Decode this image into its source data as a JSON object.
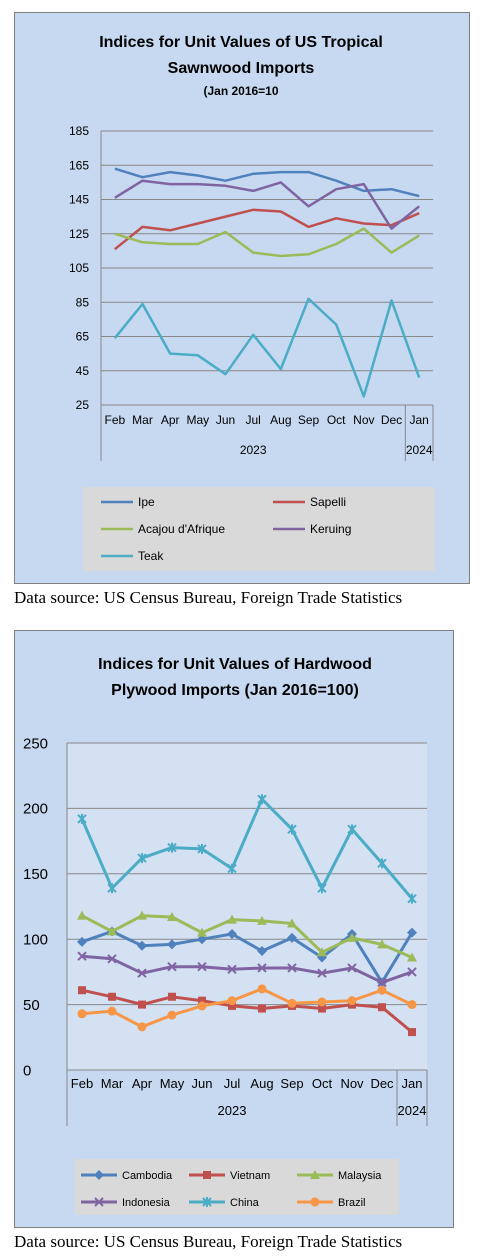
{
  "chart_data": [
    {
      "type": "line",
      "title": "Indices for Unit Values of US Tropical Sawnwood Imports",
      "subtitle": "(Jan 2016=10",
      "categories": [
        "Feb",
        "Mar",
        "Apr",
        "May",
        "Jun",
        "Jul",
        "Aug",
        "Sep",
        "Oct",
        "Nov",
        "Dec",
        "Jan"
      ],
      "year_groups": [
        {
          "label": "2023",
          "span": 11
        },
        {
          "label": "2024",
          "span": 1
        }
      ],
      "ylim": [
        25,
        185
      ],
      "yticks": [
        25,
        45,
        65,
        85,
        105,
        125,
        145,
        165,
        185
      ],
      "grid": true,
      "legend_position": "bottom",
      "series": [
        {
          "name": "Ipe",
          "color": "#4f81bd",
          "values": [
            163,
            158,
            161,
            159,
            156,
            160,
            161,
            161,
            156,
            150,
            151,
            147
          ]
        },
        {
          "name": "Sapelli",
          "color": "#c0504d",
          "values": [
            116,
            129,
            127,
            131,
            135,
            139,
            138,
            129,
            134,
            131,
            130,
            137
          ]
        },
        {
          "name": "Acajou d'Afrique",
          "color": "#9bbb59",
          "values": [
            125,
            120,
            119,
            119,
            126,
            114,
            112,
            113,
            119,
            128,
            114,
            124
          ]
        },
        {
          "name": "Keruing",
          "color": "#8064a2",
          "values": [
            146,
            156,
            154,
            154,
            153,
            150,
            155,
            141,
            151,
            154,
            128,
            141
          ]
        },
        {
          "name": "Teak",
          "color": "#4bacc6",
          "values": [
            64,
            84,
            55,
            54,
            43,
            66,
            46,
            87,
            72,
            30,
            86,
            41
          ]
        }
      ]
    },
    {
      "type": "line",
      "title": "Indices for Unit Values of Hardwood Plywood Imports (Jan 2016=100)",
      "categories": [
        "Feb",
        "Mar",
        "Apr",
        "May",
        "Jun",
        "Jul",
        "Aug",
        "Sep",
        "Oct",
        "Nov",
        "Dec",
        "Jan"
      ],
      "year_groups": [
        {
          "label": "2023",
          "span": 11
        },
        {
          "label": "2024",
          "span": 1
        }
      ],
      "ylim": [
        0,
        250
      ],
      "yticks": [
        0,
        50,
        100,
        150,
        200,
        250
      ],
      "grid": true,
      "legend_position": "bottom",
      "series": [
        {
          "name": "Cambodia",
          "color": "#4f81bd",
          "marker": "diamond",
          "values": [
            98,
            106,
            95,
            96,
            100,
            104,
            91,
            101,
            86,
            104,
            67,
            105
          ]
        },
        {
          "name": "Vietnam",
          "color": "#c0504d",
          "marker": "square",
          "values": [
            61,
            56,
            50,
            56,
            53,
            49,
            47,
            49,
            47,
            50,
            48,
            29
          ]
        },
        {
          "name": "Malaysia",
          "color": "#9bbb59",
          "marker": "triangle",
          "values": [
            118,
            106,
            118,
            117,
            105,
            115,
            114,
            112,
            90,
            101,
            96,
            86
          ]
        },
        {
          "name": "Indonesia",
          "color": "#8064a2",
          "marker": "x",
          "values": [
            87,
            85,
            74,
            79,
            79,
            77,
            78,
            78,
            74,
            78,
            67,
            75
          ]
        },
        {
          "name": "China",
          "color": "#4bacc6",
          "marker": "star",
          "values": [
            192,
            139,
            162,
            170,
            169,
            154,
            207,
            184,
            139,
            184,
            158,
            131
          ]
        },
        {
          "name": "Brazil",
          "color": "#f79646",
          "marker": "circle",
          "values": [
            43,
            45,
            33,
            42,
            49,
            53,
            62,
            51,
            52,
            53,
            61,
            50
          ]
        }
      ]
    }
  ],
  "captions": {
    "source1": "Data source: US Census Bureau, Foreign Trade Statistics",
    "source2": "Data source: US Census Bureau, Foreign Trade Statistics"
  }
}
